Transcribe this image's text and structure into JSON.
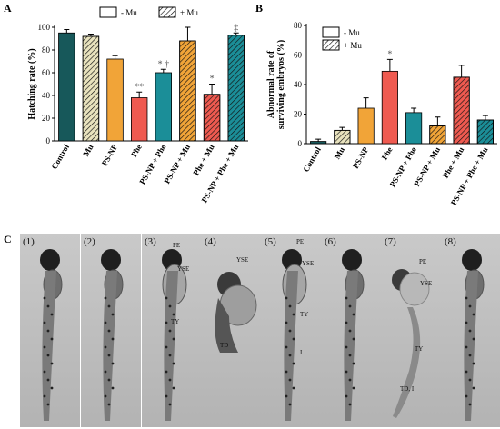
{
  "colors": {
    "control": "#17585a",
    "mu": "#e8e2bd",
    "psnp": "#f1a438",
    "phe": "#ef5a50",
    "psnp_phe": "#1b8e98",
    "psnp_mu": "#f1a438",
    "phe_mu": "#ef5a50",
    "psnp_phe_mu": "#1b8e98"
  },
  "chart_data": [
    {
      "type": "bar",
      "panel": "A",
      "ylabel": "Hatching rate (%)",
      "ylim": [
        0,
        100
      ],
      "yticks": [
        "0",
        "20",
        "40",
        "60",
        "80",
        "100"
      ],
      "categories": [
        "Control",
        "Mu",
        "PS-NP",
        "Phe",
        "PS-NP + Phe",
        "PS-NP + Mu",
        "Phe + Mu",
        "PS-NP + Phe + Mu"
      ],
      "values": [
        95,
        92,
        72,
        38,
        60,
        88,
        41,
        93
      ],
      "errors": [
        3,
        2,
        3,
        5,
        3,
        12,
        9,
        2
      ],
      "hatched": [
        false,
        true,
        false,
        false,
        false,
        true,
        true,
        true
      ],
      "annotations": [
        "",
        "",
        "",
        "**",
        "* †",
        "",
        "*",
        "‡"
      ],
      "legend": [
        "- Mu",
        "+ Mu"
      ],
      "legend_position": "top"
    },
    {
      "type": "bar",
      "panel": "B",
      "ylabel": "Abnormal rate of surviving embryos (%)",
      "ylabel_lines": [
        "Abnormal rate of",
        "surviving embryos (%)"
      ],
      "ylim": [
        0,
        80
      ],
      "yticks": [
        "0",
        "20",
        "40",
        "60",
        "80"
      ],
      "categories": [
        "Control",
        "Mu",
        "PS-NP",
        "Phe",
        "PS-NP + Phe",
        "PS-NP + Mu",
        "Phe + Mu",
        "PS-NP + Phe + Mu"
      ],
      "values": [
        1.5,
        9,
        24,
        49,
        21,
        12,
        45,
        16
      ],
      "errors": [
        1.5,
        2,
        7,
        8,
        3,
        6,
        8,
        3
      ],
      "hatched": [
        false,
        true,
        false,
        false,
        false,
        true,
        true,
        true
      ],
      "annotations": [
        "",
        "",
        "",
        "*",
        "",
        "",
        "",
        ""
      ],
      "legend": [
        "- Mu",
        "+ Mu"
      ],
      "legend_position": "top-right"
    }
  ],
  "panel_letters": {
    "a": "A",
    "b": "B",
    "c": "C"
  },
  "panel_c": {
    "panels": [
      {
        "num": "(1)",
        "labels": []
      },
      {
        "num": "(2)",
        "labels": []
      },
      {
        "num": "(3)",
        "labels": [
          "PE",
          "YSE",
          "TY"
        ]
      },
      {
        "num": "(4)",
        "labels": [
          "YSE",
          "TD"
        ]
      },
      {
        "num": "(5)",
        "labels": [
          "PE",
          "YSE",
          "TY",
          "I"
        ]
      },
      {
        "num": "(6)",
        "labels": []
      },
      {
        "num": "(7)",
        "labels": [
          "PE",
          "YSE",
          "TY",
          "TD, I"
        ]
      },
      {
        "num": "(8)",
        "labels": []
      }
    ]
  }
}
